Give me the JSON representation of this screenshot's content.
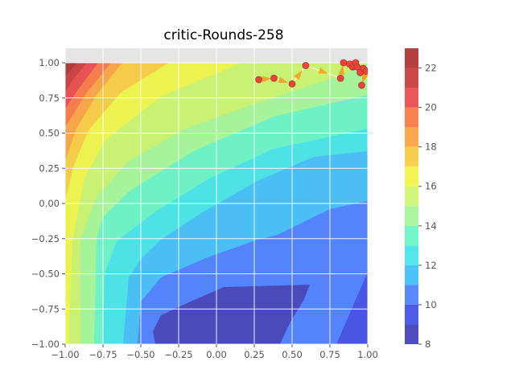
{
  "chart_data": {
    "type": "contourf",
    "title": "critic-Rounds-258",
    "xlabel": "",
    "ylabel": "",
    "xlim": [
      -1.0,
      1.0
    ],
    "ylim": [
      -1.0,
      1.0
    ],
    "x_ticks": [
      -1.0,
      -0.75,
      -0.5,
      -0.25,
      0.0,
      0.25,
      0.5,
      0.75,
      1.0
    ],
    "x_tick_labels": [
      "−1.00",
      "−0.75",
      "−0.50",
      "−0.25",
      "0.00",
      "0.25",
      "0.50",
      "0.75",
      "1.00"
    ],
    "y_ticks": [
      -1.0,
      -0.75,
      -0.5,
      -0.25,
      0.0,
      0.25,
      0.5,
      0.75,
      1.0
    ],
    "y_tick_labels": [
      "−1.00",
      "−0.75",
      "−0.50",
      "−0.25",
      "0.00",
      "0.25",
      "0.50",
      "0.75",
      "1.00"
    ],
    "grid": true,
    "style": "ggplot",
    "colormap": "jet",
    "levels": [
      8,
      9,
      10,
      11,
      12,
      13,
      14,
      15,
      16,
      17,
      18,
      19,
      20,
      21,
      22,
      23
    ],
    "level_colors": [
      "#2f30b4",
      "#2f3fe6",
      "#3a74ff",
      "#2fb8f8",
      "#33e2e6",
      "#59f4c0",
      "#9cf68e",
      "#c5f561",
      "#eef535",
      "#f8c730",
      "#fb9a30",
      "#f86a33",
      "#e83a3a",
      "#c52a2a",
      "#a81f1f"
    ],
    "colorbar": {
      "ticks": [
        8,
        10,
        12,
        14,
        16,
        18,
        20,
        22
      ],
      "tick_labels": [
        "8",
        "10",
        "12",
        "14",
        "16",
        "18",
        "20",
        "22"
      ],
      "range": [
        8,
        23
      ]
    },
    "trajectory": {
      "marker_color": "#e8463a",
      "line_color": "#ffffff",
      "arrow_color": "#f5a623",
      "points": [
        [
          0.28,
          0.88
        ],
        [
          0.38,
          0.89
        ],
        [
          0.5,
          0.85
        ],
        [
          0.59,
          0.98
        ],
        [
          0.82,
          0.89
        ],
        [
          0.84,
          1.0
        ],
        [
          0.88,
          0.99
        ],
        [
          0.9,
          0.97
        ],
        [
          0.92,
          1.0
        ],
        [
          0.93,
          0.97
        ],
        [
          0.95,
          0.93
        ],
        [
          0.97,
          0.96
        ],
        [
          0.99,
          0.94
        ],
        [
          0.96,
          0.84
        ]
      ]
    }
  }
}
